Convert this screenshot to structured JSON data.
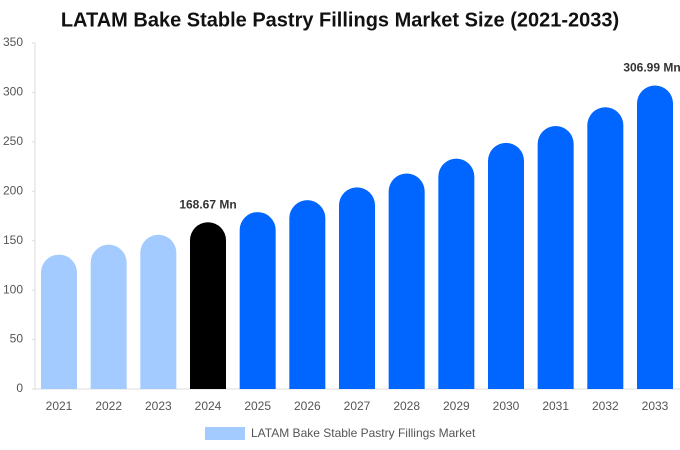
{
  "chart_data": {
    "type": "bar",
    "title": "LATAM Bake Stable Pastry Fillings Market Size (2021-2033)",
    "categories": [
      "2021",
      "2022",
      "2023",
      "2024",
      "2025",
      "2026",
      "2027",
      "2028",
      "2029",
      "2030",
      "2031",
      "2032",
      "2033"
    ],
    "series": [
      {
        "name": "LATAM Bake Stable Pastry Fillings Market",
        "color": "#a3cbff",
        "values": [
          136,
          146,
          156,
          168.67,
          179,
          191,
          204,
          218,
          233,
          249,
          266,
          285,
          306.99
        ],
        "value_labels": [
          null,
          null,
          null,
          "168.67 Mn",
          null,
          null,
          null,
          null,
          null,
          null,
          null,
          null,
          "306.99 Mn"
        ],
        "colors": [
          "#a3cbff",
          "#a3cbff",
          "#a3cbff",
          "#000000",
          "#0066ff",
          "#0066ff",
          "#0066ff",
          "#0066ff",
          "#0066ff",
          "#0066ff",
          "#0066ff",
          "#0066ff",
          "#0066ff"
        ]
      }
    ],
    "ylim": [
      0,
      350
    ],
    "yticks": [
      0,
      50,
      100,
      150,
      200,
      250,
      300,
      350
    ],
    "grid": false,
    "legend": "bottom"
  }
}
